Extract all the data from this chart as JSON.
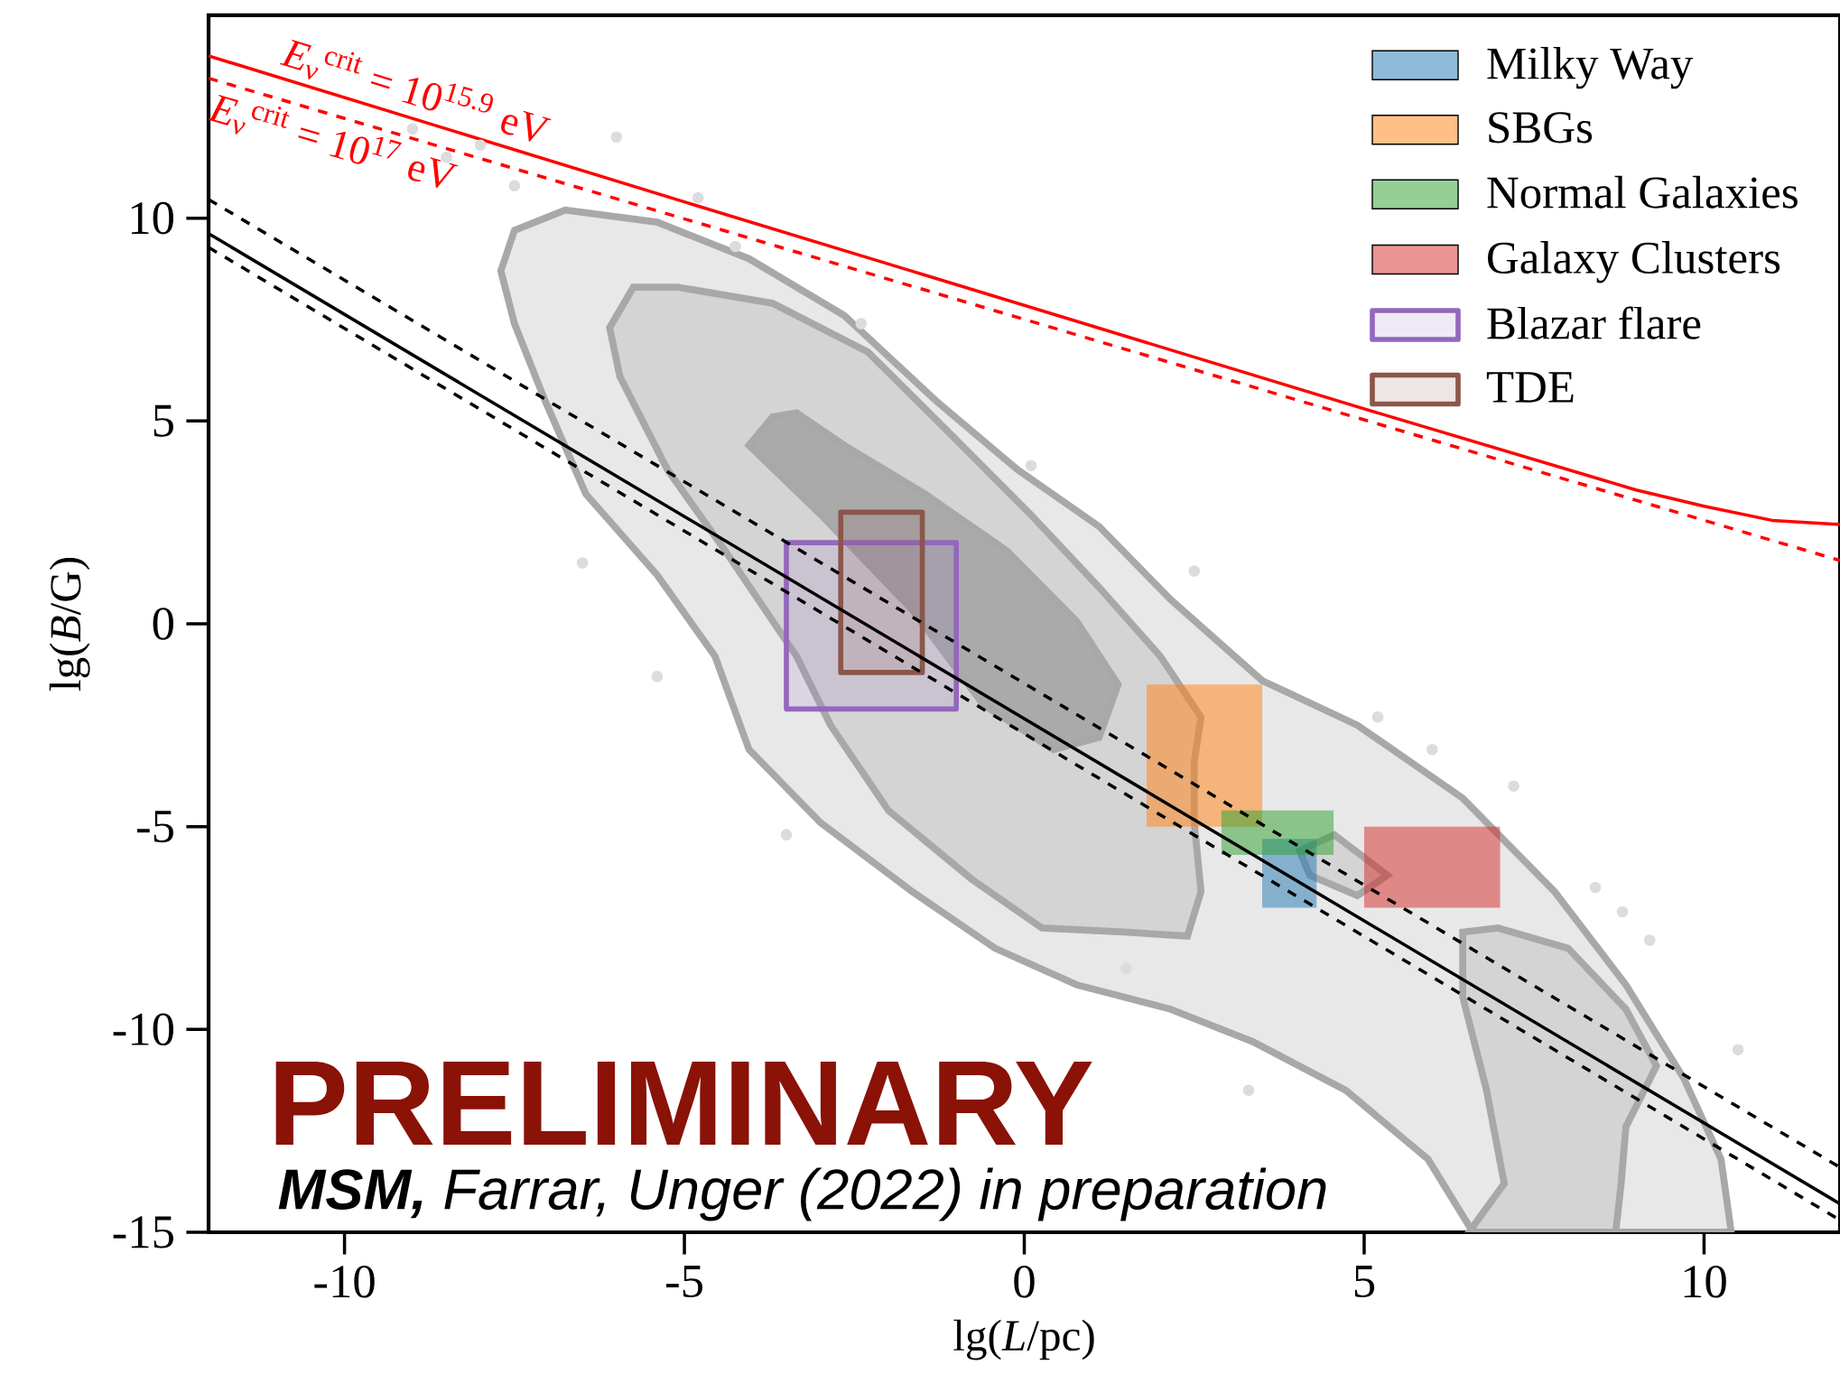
{
  "chart_data": {
    "type": "line",
    "xlabel": "lg(*L*/pc)",
    "ylabel": "lg(*B*/G)",
    "xlim": [
      -12,
      12
    ],
    "ylim": [
      -15,
      15
    ],
    "xticks": [
      -10,
      -5,
      0,
      5,
      10
    ],
    "yticks": [
      -15,
      -10,
      -5,
      0,
      5,
      10
    ],
    "legend": "top right",
    "annotations": [
      "PRELIMINARY",
      "**MSM,** Farrar, Unger (2022) in preparation"
    ],
    "series": [
      {
        "type": "area",
        "color": "#e8e8e8",
        "x": [
          -6.75,
          -7.5,
          -7.7,
          -7.5,
          -7.05,
          -6.45,
          -5.4,
          -4.55,
          -4.05,
          -3.0,
          -1.65,
          -0.43,
          0.77,
          2.15,
          3.36,
          4.73,
          5.94,
          6.6,
          10.4,
          10.25,
          9.7,
          8.85,
          7.8,
          6.45,
          4.9,
          3.5,
          2.15,
          1.1,
          -0.1,
          -1.3,
          -2.65,
          -4.05,
          -5.4,
          -6.75
        ],
        "values": [
          10.2,
          9.7,
          8.7,
          7.4,
          5.5,
          3.2,
          1.2,
          -0.8,
          -3.1,
          -4.9,
          -6.6,
          -8.0,
          -8.9,
          -9.5,
          -10.3,
          -11.5,
          -13.2,
          -15,
          -15,
          -13.2,
          -11.2,
          -8.9,
          -6.6,
          -4.3,
          -2.5,
          -1.4,
          0.6,
          2.4,
          3.8,
          5.5,
          7.6,
          9.0,
          9.9,
          10.2
        ]
      },
      {
        "type": "area",
        "color": "#d4d4d4",
        "x": [
          -5.75,
          -6.1,
          -5.95,
          -5.25,
          -4.4,
          -3.35,
          -2.85,
          -2.0,
          -0.77,
          0.26,
          1.46,
          2.4,
          2.6,
          2.5,
          2.5,
          2.6,
          2.0,
          1.1,
          0.09,
          -1.1,
          -2.3,
          -3.7,
          -5.1,
          -5.75
        ],
        "values": [
          8.3,
          7.3,
          6.1,
          3.8,
          1.8,
          -0.8,
          -2.5,
          -4.6,
          -6.3,
          -7.5,
          -7.6,
          -7.7,
          -6.6,
          -4.9,
          -3.4,
          -2.3,
          -0.8,
          0.9,
          2.7,
          4.7,
          6.7,
          7.9,
          8.3,
          8.3
        ]
      },
      {
        "type": "area",
        "color": "#d4d4d4",
        "x": [
          4.05,
          4.56,
          5.34,
          4.9,
          4.2,
          4.05
        ],
        "values": [
          -5.6,
          -5.2,
          -6.2,
          -6.7,
          -6.2,
          -5.6
        ]
      },
      {
        "type": "area",
        "color": "#d4d4d4",
        "x": [
          6.45,
          6.97,
          8.0,
          8.85,
          9.3,
          8.85,
          8.78,
          8.7,
          6.54,
          7.06,
          6.8,
          6.45,
          6.45
        ],
        "values": [
          -7.6,
          -7.5,
          -8.0,
          -9.5,
          -10.9,
          -12.4,
          -13.8,
          -15,
          -15,
          -13.8,
          -11.5,
          -9.2,
          -7.6
        ]
      },
      {
        "type": "area",
        "color": "#aaaaaa",
        "x": [
          -3.7,
          -4.05,
          -3.0,
          -1.65,
          -0.6,
          0.43,
          1.1,
          1.38,
          0.77,
          -0.26,
          -1.46,
          -2.65,
          -3.35,
          -3.7
        ],
        "values": [
          5.1,
          4.4,
          2.7,
          0.35,
          -2.0,
          -3.1,
          -2.8,
          -1.5,
          0.06,
          1.8,
          3.2,
          4.4,
          5.2,
          5.1
        ]
      },
      {
        "type": "scatter",
        "color": "#dcdcdc",
        "x": [
          -8.5,
          -7.5,
          -2.4,
          -4.25,
          0.1,
          2.5,
          6.0,
          8.4,
          8.8,
          9.2,
          3.3,
          -3.5,
          -5.4,
          -6.5,
          -9.0,
          -8.0,
          -6.0,
          -4.8,
          5.2,
          7.2,
          10.5,
          1.5
        ],
        "values": [
          11.5,
          10.8,
          7.4,
          9.3,
          3.9,
          1.3,
          -3.1,
          -6.5,
          -7.1,
          -7.8,
          -11.5,
          -5.2,
          -1.3,
          1.5,
          12.2,
          11.8,
          12.0,
          10.5,
          -2.3,
          -4.0,
          -10.5,
          -8.5
        ]
      },
      {
        "type": "area",
        "name": "Milky Way",
        "color": "#1f77b4",
        "x": [
          3.5,
          4.3,
          4.3,
          3.5,
          3.5
        ],
        "values": [
          -5.3,
          -5.3,
          -7,
          -7,
          -5.3
        ]
      },
      {
        "type": "area",
        "name": "SBGs",
        "color": "#ff7f0e",
        "x": [
          1.8,
          3.5,
          3.5,
          1.8,
          1.8
        ],
        "values": [
          -1.5,
          -1.5,
          -5,
          -5,
          -1.5
        ]
      },
      {
        "type": "area",
        "name": "Normal Galaxies",
        "color": "#2ca02c",
        "x": [
          2.9,
          4.55,
          4.55,
          2.9,
          2.9
        ],
        "values": [
          -4.6,
          -4.6,
          -5.7,
          -5.7,
          -4.6
        ]
      },
      {
        "type": "area",
        "name": "Galaxy Clusters",
        "color": "#d62728",
        "x": [
          5,
          7,
          7,
          5,
          5
        ],
        "values": [
          -5,
          -5,
          -7,
          -7,
          -5
        ]
      },
      {
        "type": "area",
        "line_style": "solid",
        "name": "Blazar flare",
        "color": "#9467bd",
        "x": [
          -3.5,
          -1,
          -1,
          -3.5,
          -3.5
        ],
        "values": [
          2,
          2,
          -2.1,
          -2.1,
          2
        ]
      },
      {
        "type": "area",
        "line_style": "solid",
        "name": "TDE",
        "color": "#8c564b",
        "x": [
          -2.7,
          -1.5,
          -1.5,
          -2.7,
          -2.7
        ],
        "values": [
          2.75,
          2.75,
          -1.2,
          -1.2,
          2.75
        ]
      },
      {
        "color": "#000000",
        "line_style": "solid",
        "x": [
          -12,
          12
        ],
        "values": [
          9.62,
          -14.3
        ]
      },
      {
        "color": "#000000",
        "line_style": "dashed",
        "x": [
          -12,
          12
        ],
        "values": [
          10.46,
          -13.4
        ]
      },
      {
        "color": "#000000",
        "line_style": "dashed",
        "x": [
          -12,
          12
        ],
        "values": [
          9.28,
          -14.7
        ]
      },
      {
        "name": "*E*$_{ν}$$^{crit}$ = 10$^{15.9}$ eV",
        "color": "#ff0000",
        "line_style": "solid",
        "x": [
          -12,
          -5,
          5,
          9,
          10,
          11,
          12
        ],
        "values": [
          14.0,
          10.4,
          5.3,
          3.3,
          2.9,
          2.55,
          2.45
        ]
      },
      {
        "name": "*E*$_{ν}$$^{crit}$ = 10$^{17}$ eV",
        "color": "#ff0000",
        "line_style": "dashed",
        "x": [
          -12,
          12
        ],
        "values": [
          13.45,
          1.56
        ]
      }
    ]
  }
}
